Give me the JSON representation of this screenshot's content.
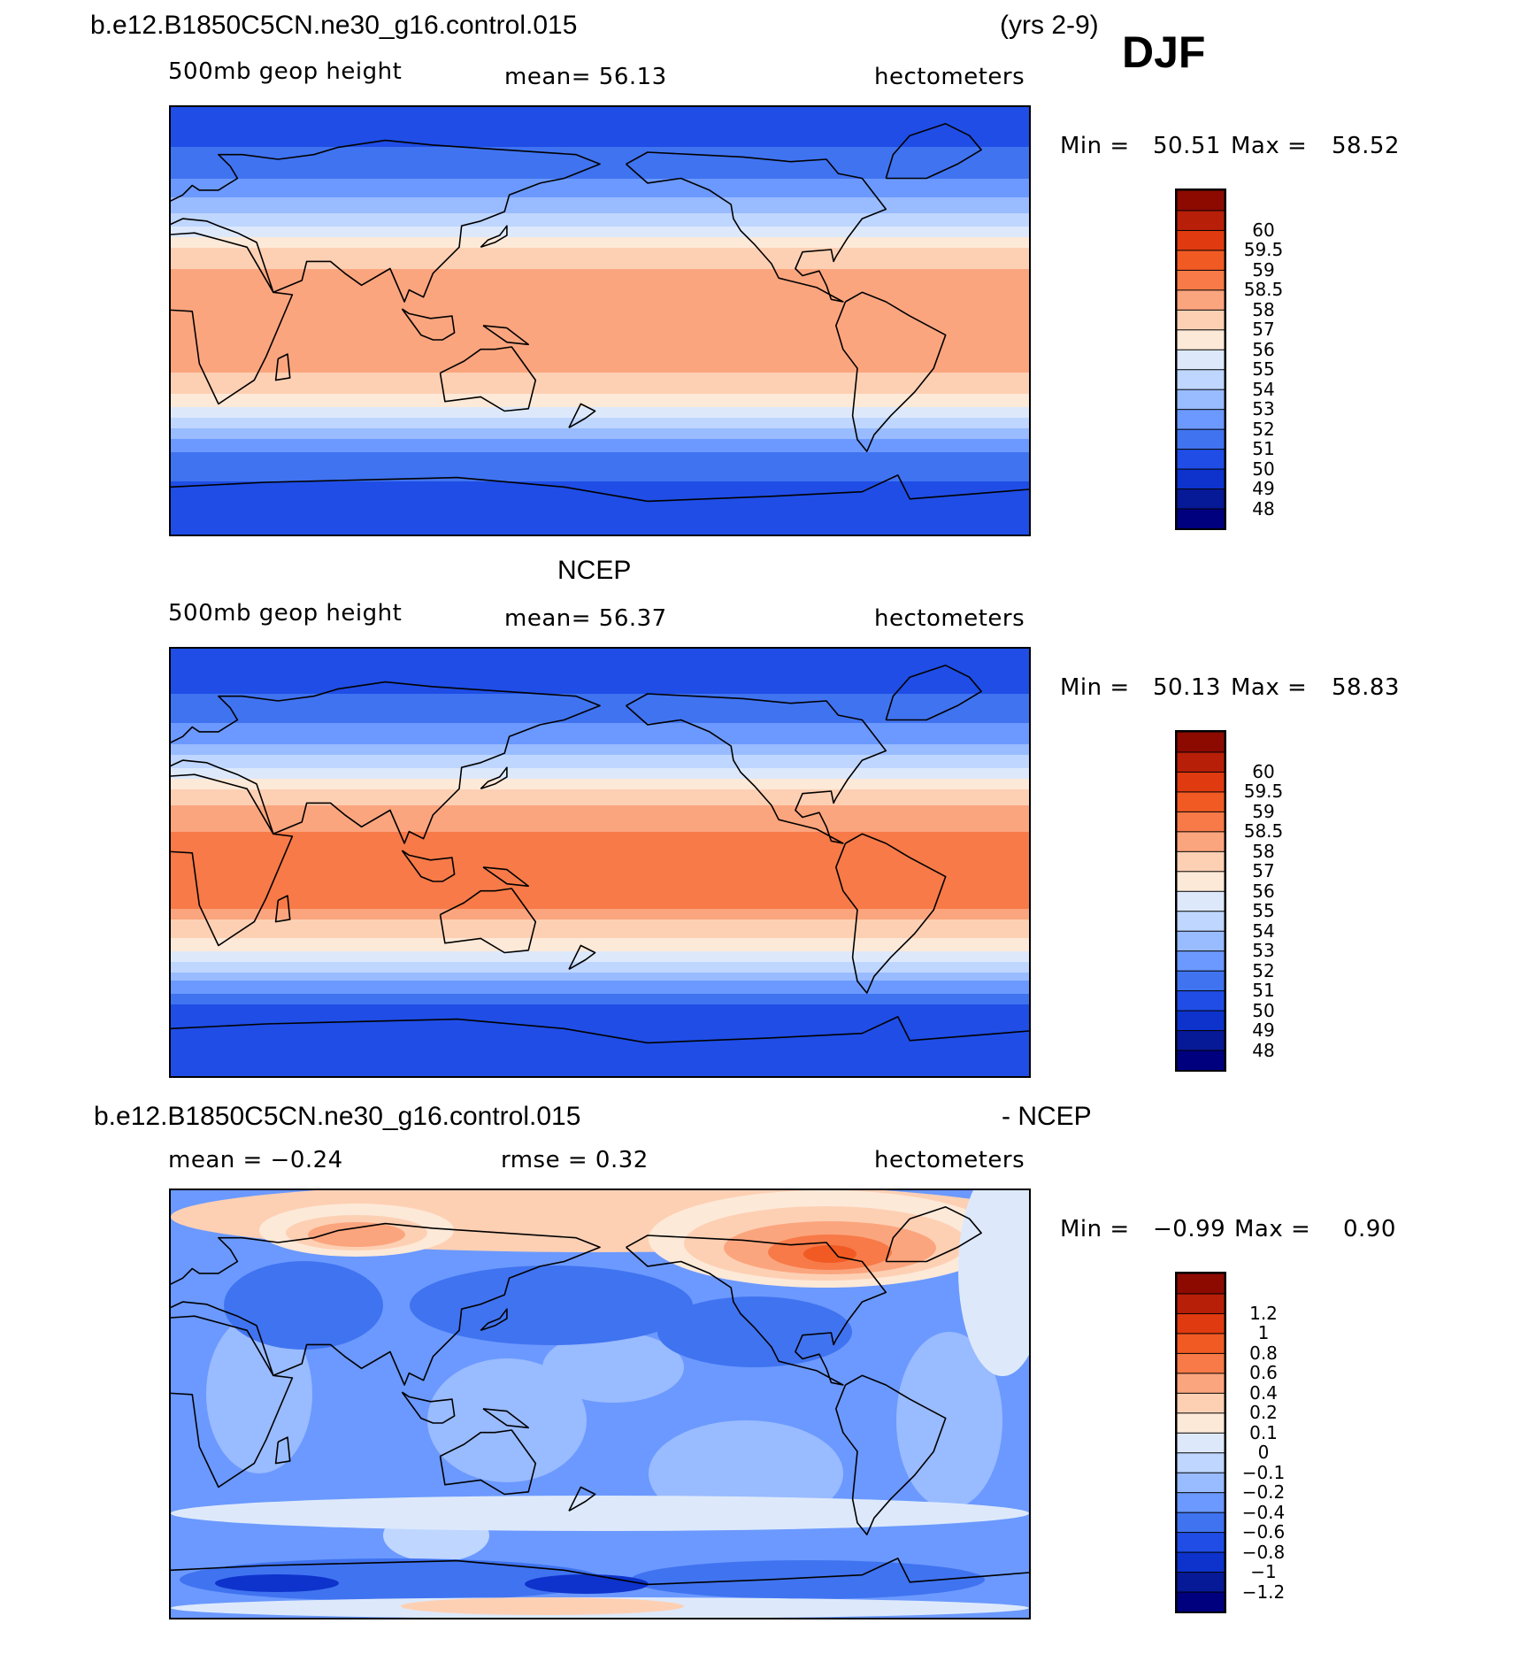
{
  "figure": {
    "case_title_top": "b.e12.B1850C5CN.ne30_g16.control.015",
    "years": "(yrs 2-9)",
    "season": "DJF"
  },
  "panel_model": {
    "variable": "500mb geop height",
    "mean_text": "mean=   56.13",
    "units": "hectometers",
    "min_label": "Min  =",
    "min_value": "50.51",
    "max_label": "Max  =",
    "max_value": "58.52"
  },
  "panel_obs": {
    "title": "NCEP",
    "variable": "500mb geop height",
    "mean_text": "mean=   56.37",
    "units": "hectometers",
    "min_label": "Min  =",
    "min_value": "50.13",
    "max_label": "Max  =",
    "max_value": "58.83"
  },
  "panel_diff": {
    "case_title": "b.e12.B1850C5CN.ne30_g16.control.015",
    "minus_obs": "- NCEP",
    "mean_text": "mean  =   −0.24",
    "rmse_text": "rmse  =     0.32",
    "units": "hectometers",
    "min_label": "Min  =",
    "min_value": "−0.99",
    "max_label": "Max  =",
    "max_value": "0.90"
  },
  "colors": {
    "abs_levels": [
      "#00007f",
      "#061996",
      "#0d33cc",
      "#1f4de6",
      "#4073f0",
      "#6b99ff",
      "#99bbff",
      "#bfd6ff",
      "#dde9fb",
      "#fde9d8",
      "#fdd0b4",
      "#fba57e",
      "#f77a48",
      "#f25a24",
      "#e03a10",
      "#b81f08",
      "#8c0a00"
    ],
    "diff_levels": [
      "#00007f",
      "#061996",
      "#0d33cc",
      "#1f4de6",
      "#4073f0",
      "#6b99ff",
      "#99bbff",
      "#bfd6ff",
      "#dde9fb",
      "#fde9d8",
      "#fdd0b4",
      "#fba57e",
      "#f77a48",
      "#f25a24",
      "#e03a10",
      "#b81f08",
      "#8c0a00"
    ]
  },
  "chart_data": [
    {
      "type": "heatmap",
      "title": "500mb geop height",
      "subtitle": "b.e12.B1850C5CN.ne30_g16.control.015",
      "units": "hectometers",
      "mean": 56.13,
      "min": 50.51,
      "max": 58.52,
      "colorbar_levels": [
        "48",
        "49",
        "50",
        "51",
        "52",
        "53",
        "54",
        "55",
        "56",
        "57",
        "58",
        "58.5",
        "59",
        "59.5",
        "60"
      ],
      "zonal_profile": {
        "lat": [
          90,
          75,
          60,
          50,
          40,
          30,
          20,
          0,
          -20,
          -30,
          -40,
          -50,
          -60,
          -75,
          -90
        ],
        "value": [
          50.6,
          50.9,
          52.0,
          53.2,
          55.0,
          57.2,
          58.2,
          58.3,
          58.2,
          57.2,
          55.3,
          53.0,
          51.2,
          50.8,
          50.5
        ]
      }
    },
    {
      "type": "heatmap",
      "title": "500mb geop height",
      "subtitle": "NCEP",
      "units": "hectometers",
      "mean": 56.37,
      "min": 50.13,
      "max": 58.83,
      "colorbar_levels": [
        "48",
        "49",
        "50",
        "51",
        "52",
        "53",
        "54",
        "55",
        "56",
        "57",
        "58",
        "58.5",
        "59",
        "59.5",
        "60"
      ],
      "zonal_profile": {
        "lat": [
          90,
          75,
          60,
          50,
          40,
          30,
          20,
          0,
          -20,
          -30,
          -40,
          -50,
          -60,
          -75,
          -90
        ],
        "value": [
          50.4,
          50.7,
          51.8,
          53.0,
          55.0,
          57.3,
          58.4,
          58.7,
          58.5,
          57.4,
          55.5,
          53.0,
          51.0,
          50.6,
          50.2
        ]
      }
    },
    {
      "type": "heatmap",
      "title": "b.e12.B1850C5CN.ne30_g16.control.015 - NCEP",
      "units": "hectometers",
      "mean": -0.24,
      "rmse": 0.32,
      "min": -0.99,
      "max": 0.9,
      "colorbar_levels": [
        "−1.2",
        "−1",
        "−0.8",
        "−0.6",
        "−0.4",
        "−0.2",
        "−0.1",
        "0",
        "0.1",
        "0.2",
        "0.4",
        "0.6",
        "0.8",
        "1",
        "1.2"
      ]
    }
  ]
}
